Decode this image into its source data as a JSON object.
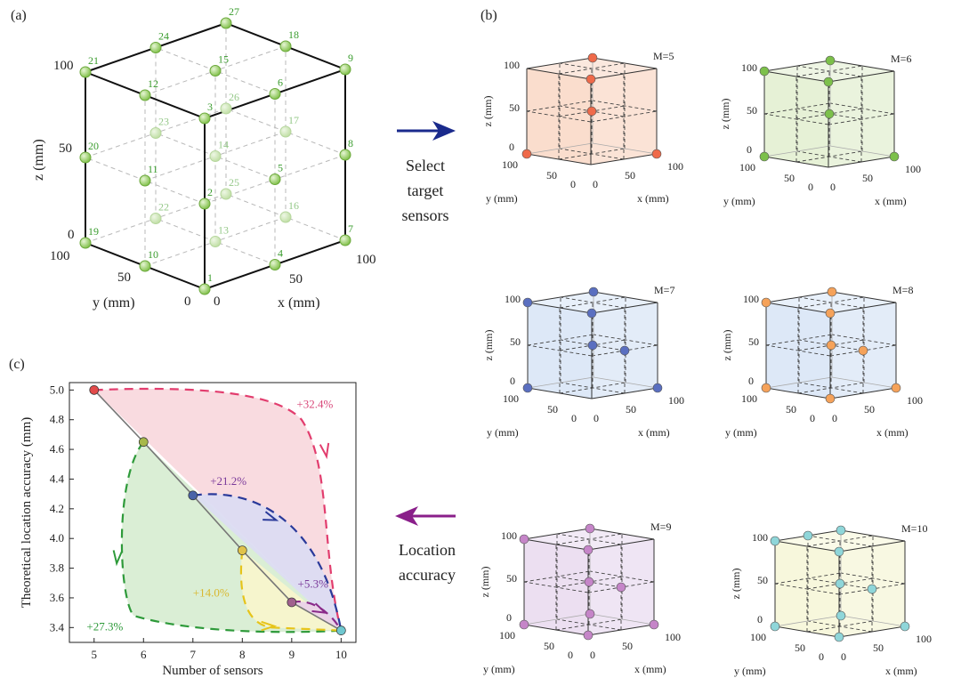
{
  "panel_labels": {
    "a": "(a)",
    "b": "(b)",
    "c": "(c)"
  },
  "panel_a": {
    "axis_x": "x (mm)",
    "axis_y": "y (mm)",
    "axis_z": "z (mm)",
    "z_ticks": [
      "100",
      "50",
      "0"
    ],
    "x_ticks": [
      "0",
      "50",
      "100"
    ],
    "y_ticks": [
      "100",
      "50",
      "0"
    ],
    "sensor_labels": [
      "1",
      "2",
      "3",
      "4",
      "5",
      "6",
      "7",
      "8",
      "9",
      "10",
      "11",
      "12",
      "13",
      "14",
      "15",
      "16",
      "17",
      "18",
      "19",
      "20",
      "21",
      "22",
      "23",
      "24",
      "25",
      "26",
      "27"
    ],
    "dot_color": "#8ecb5a",
    "label_color": "#3a9c2e"
  },
  "arrow_b": {
    "line1": "Select",
    "line2": "target",
    "line3": "sensors",
    "color": "#1a2a8c"
  },
  "arrow_c": {
    "line1": "Location",
    "line2": "accuracy",
    "color": "#8a1f8a"
  },
  "panel_b": {
    "cubes": [
      {
        "title": "M=5",
        "fill": "#f9d9c8",
        "dot": "#ef6a4a"
      },
      {
        "title": "M=6",
        "fill": "#e3efd2",
        "dot": "#7cc04a"
      },
      {
        "title": "M=7",
        "fill": "#d9e6f6",
        "dot": "#5a6fc0"
      },
      {
        "title": "M=8",
        "fill": "#d9e6f6",
        "dot": "#f5a25a"
      },
      {
        "title": "M=9",
        "fill": "#eadcf0",
        "dot": "#c585c8"
      },
      {
        "title": "M=10",
        "fill": "#f6f6d8",
        "dot": "#8fd6d9"
      }
    ],
    "tick_100": "100",
    "tick_50": "50",
    "tick_0": "0",
    "axis_x": "x (mm)",
    "axis_y": "y (mm)",
    "axis_z": "z (mm)"
  },
  "chart_data": {
    "type": "line",
    "xlabel": "Number of sensors",
    "ylabel": "Theoretical location accuracy (mm)",
    "xlim": [
      4.5,
      10.3
    ],
    "ylim": [
      3.3,
      5.05
    ],
    "xticks": [
      "5",
      "6",
      "7",
      "8",
      "9",
      "10"
    ],
    "yticks": [
      "3.4",
      "3.6",
      "3.8",
      "4.0",
      "4.2",
      "4.4",
      "4.6",
      "4.8",
      "5.0"
    ],
    "x": [
      5,
      6,
      7,
      8,
      9,
      10
    ],
    "y": [
      5.0,
      4.65,
      4.29,
      3.92,
      3.57,
      3.38
    ],
    "point_colors": [
      "#e24a4a",
      "#a7b84a",
      "#4a63a8",
      "#e0c24a",
      "#a0608e",
      "#6fc7cf"
    ],
    "annotations": [
      {
        "text": "+32.4%",
        "color": "#d9487a"
      },
      {
        "text": "+21.2%",
        "color": "#7a3a9a"
      },
      {
        "text": "+5.3%",
        "color": "#7a3a9a"
      },
      {
        "text": "+14.0%",
        "color": "#d9b830"
      },
      {
        "text": "+27.3%",
        "color": "#2e9a3a"
      }
    ]
  }
}
